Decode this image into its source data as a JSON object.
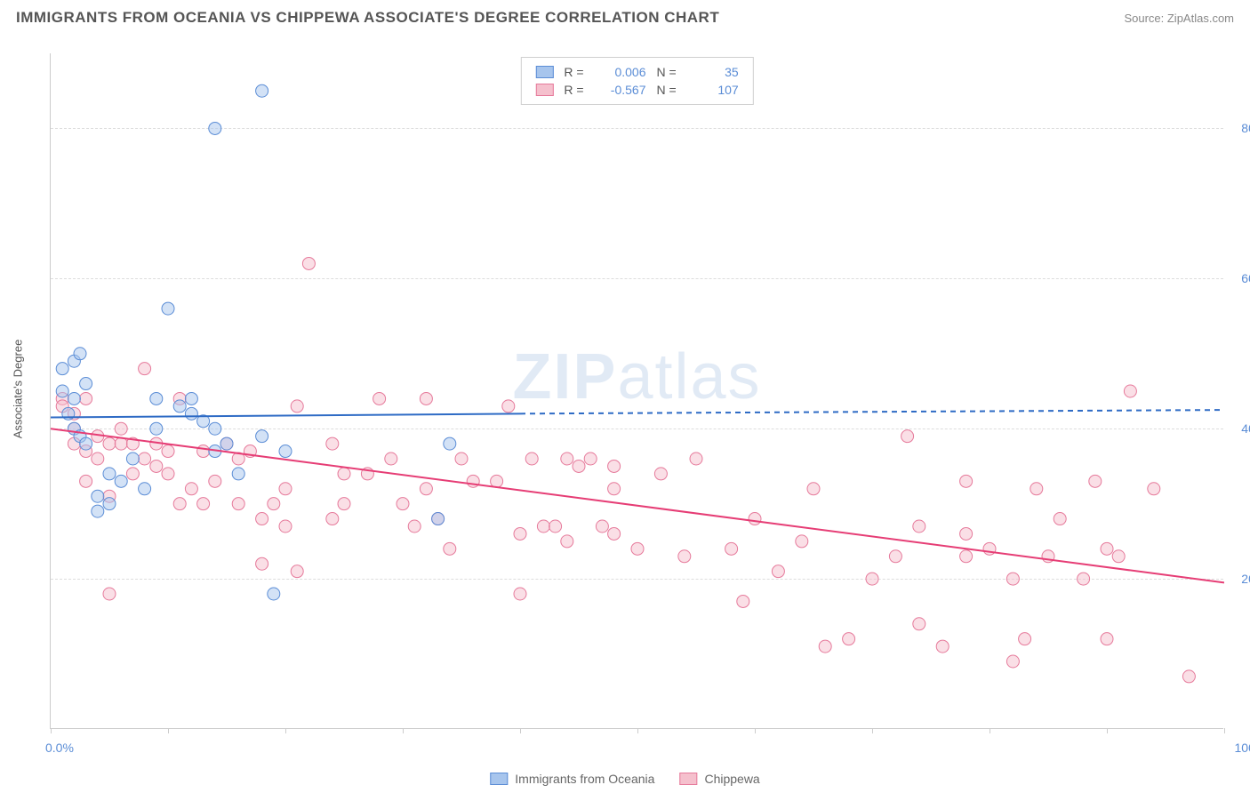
{
  "header": {
    "title": "IMMIGRANTS FROM OCEANIA VS CHIPPEWA ASSOCIATE'S DEGREE CORRELATION CHART",
    "source": "Source: ZipAtlas.com"
  },
  "watermark": {
    "zip": "ZIP",
    "atlas": "atlas"
  },
  "chart": {
    "type": "scatter",
    "ylabel": "Associate's Degree",
    "xlim": [
      0,
      100
    ],
    "ylim": [
      0,
      90
    ],
    "ytick_values": [
      20,
      40,
      60,
      80
    ],
    "ytick_labels": [
      "20.0%",
      "40.0%",
      "60.0%",
      "80.0%"
    ],
    "xtick_values": [
      0,
      10,
      20,
      30,
      40,
      50,
      60,
      70,
      80,
      90,
      100
    ],
    "xlim_labels": {
      "min": "0.0%",
      "max": "100.0%"
    },
    "background_color": "#ffffff",
    "grid_color": "#dddddd",
    "axis_color": "#cccccc",
    "ytick_label_color": "#5b8dd6",
    "marker_radius": 7,
    "marker_opacity": 0.5,
    "line_width": 2,
    "series": [
      {
        "name": "Immigrants from Oceania",
        "fill_color": "#a7c5ed",
        "stroke_color": "#5b8dd6",
        "line_color": "#2e6bc5",
        "R": "0.006",
        "N": "35",
        "trend": {
          "x1": 0,
          "y1": 41.5,
          "x2": 40,
          "y2": 42.0,
          "dash_after_x": 40,
          "x3": 100,
          "y3": 42.5
        },
        "points": [
          [
            1,
            48
          ],
          [
            1,
            45
          ],
          [
            1.5,
            42
          ],
          [
            2,
            40
          ],
          [
            2,
            44
          ],
          [
            2,
            49
          ],
          [
            2.5,
            39
          ],
          [
            2.5,
            50
          ],
          [
            3,
            38
          ],
          [
            3,
            46
          ],
          [
            4,
            29
          ],
          [
            4,
            31
          ],
          [
            5,
            34
          ],
          [
            5,
            30
          ],
          [
            6,
            33
          ],
          [
            7,
            36
          ],
          [
            8,
            32
          ],
          [
            9,
            40
          ],
          [
            9,
            44
          ],
          [
            10,
            56
          ],
          [
            11,
            43
          ],
          [
            12,
            44
          ],
          [
            12,
            42
          ],
          [
            13,
            41
          ],
          [
            14,
            80
          ],
          [
            14,
            40
          ],
          [
            14,
            37
          ],
          [
            15,
            38
          ],
          [
            16,
            34
          ],
          [
            18,
            39
          ],
          [
            18,
            85
          ],
          [
            19,
            18
          ],
          [
            20,
            37
          ],
          [
            33,
            28
          ],
          [
            34,
            38
          ]
        ]
      },
      {
        "name": "Chippewa",
        "fill_color": "#f5c0cd",
        "stroke_color": "#e67a9b",
        "line_color": "#e63d75",
        "R": "-0.567",
        "N": "107",
        "trend": {
          "x1": 0,
          "y1": 40.0,
          "x2": 100,
          "y2": 19.5
        },
        "points": [
          [
            1,
            44
          ],
          [
            1,
            43
          ],
          [
            2,
            40
          ],
          [
            2,
            38
          ],
          [
            2,
            42
          ],
          [
            3,
            37
          ],
          [
            3,
            44
          ],
          [
            3,
            33
          ],
          [
            4,
            39
          ],
          [
            4,
            36
          ],
          [
            5,
            38
          ],
          [
            5,
            31
          ],
          [
            5,
            18
          ],
          [
            6,
            38
          ],
          [
            6,
            40
          ],
          [
            7,
            34
          ],
          [
            7,
            38
          ],
          [
            8,
            48
          ],
          [
            8,
            36
          ],
          [
            9,
            38
          ],
          [
            9,
            35
          ],
          [
            10,
            34
          ],
          [
            10,
            37
          ],
          [
            11,
            44
          ],
          [
            11,
            30
          ],
          [
            12,
            32
          ],
          [
            13,
            30
          ],
          [
            13,
            37
          ],
          [
            14,
            33
          ],
          [
            15,
            38
          ],
          [
            16,
            30
          ],
          [
            16,
            36
          ],
          [
            17,
            37
          ],
          [
            18,
            28
          ],
          [
            18,
            22
          ],
          [
            19,
            30
          ],
          [
            20,
            32
          ],
          [
            20,
            27
          ],
          [
            21,
            43
          ],
          [
            21,
            21
          ],
          [
            22,
            62
          ],
          [
            24,
            28
          ],
          [
            24,
            38
          ],
          [
            25,
            34
          ],
          [
            25,
            30
          ],
          [
            27,
            34
          ],
          [
            28,
            44
          ],
          [
            29,
            36
          ],
          [
            30,
            30
          ],
          [
            31,
            27
          ],
          [
            32,
            44
          ],
          [
            32,
            32
          ],
          [
            33,
            28
          ],
          [
            34,
            24
          ],
          [
            35,
            36
          ],
          [
            36,
            33
          ],
          [
            38,
            33
          ],
          [
            39,
            43
          ],
          [
            40,
            26
          ],
          [
            40,
            18
          ],
          [
            41,
            36
          ],
          [
            42,
            27
          ],
          [
            43,
            27
          ],
          [
            44,
            36
          ],
          [
            44,
            25
          ],
          [
            45,
            35
          ],
          [
            46,
            36
          ],
          [
            47,
            27
          ],
          [
            48,
            26
          ],
          [
            48,
            32
          ],
          [
            48,
            35
          ],
          [
            50,
            24
          ],
          [
            52,
            34
          ],
          [
            54,
            23
          ],
          [
            55,
            36
          ],
          [
            58,
            24
          ],
          [
            59,
            17
          ],
          [
            60,
            28
          ],
          [
            62,
            21
          ],
          [
            64,
            25
          ],
          [
            65,
            32
          ],
          [
            66,
            11
          ],
          [
            68,
            12
          ],
          [
            70,
            20
          ],
          [
            72,
            23
          ],
          [
            73,
            39
          ],
          [
            74,
            27
          ],
          [
            74,
            14
          ],
          [
            76,
            11
          ],
          [
            78,
            26
          ],
          [
            78,
            23
          ],
          [
            78,
            33
          ],
          [
            80,
            24
          ],
          [
            82,
            9
          ],
          [
            82,
            20
          ],
          [
            83,
            12
          ],
          [
            84,
            32
          ],
          [
            85,
            23
          ],
          [
            86,
            28
          ],
          [
            88,
            20
          ],
          [
            89,
            33
          ],
          [
            90,
            12
          ],
          [
            90,
            24
          ],
          [
            91,
            23
          ],
          [
            92,
            45
          ],
          [
            94,
            32
          ],
          [
            97,
            7
          ]
        ]
      }
    ],
    "legend_bottom": [
      {
        "label": "Immigrants from Oceania",
        "series": 0
      },
      {
        "label": "Chippewa",
        "series": 1
      }
    ]
  }
}
